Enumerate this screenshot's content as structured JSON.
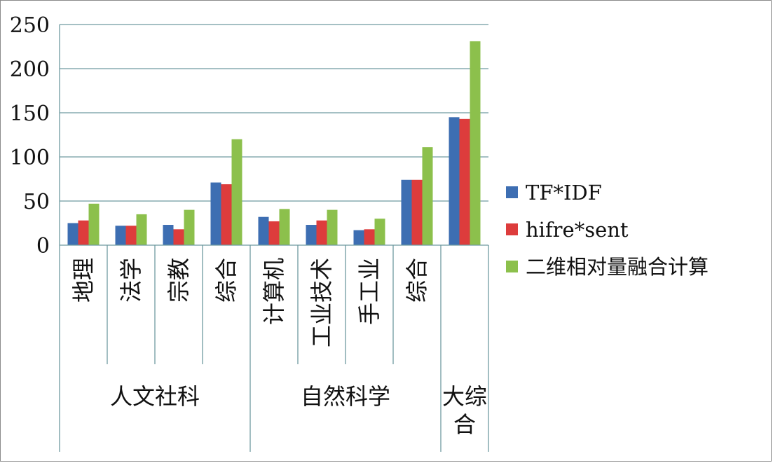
{
  "chart_data": {
    "type": "bar",
    "ylim": [
      0,
      250
    ],
    "yticks": [
      "0",
      "50",
      "100",
      "150",
      "200",
      "250"
    ],
    "grid": true,
    "legend_position": "right",
    "categories": [
      "地理",
      "法学",
      "宗教",
      "综合",
      "计算机",
      "工业技术",
      "手工业",
      "综合",
      ""
    ],
    "groups": [
      {
        "label": "人文社科",
        "span": [
          0,
          3
        ]
      },
      {
        "label": "自然科学",
        "span": [
          4,
          7
        ]
      },
      {
        "label": "大综合",
        "span": [
          8,
          8
        ]
      }
    ],
    "series": [
      {
        "name": "TF*IDF",
        "color": "#3d6eb2",
        "values": [
          25,
          22,
          23,
          71,
          32,
          23,
          17,
          74,
          145
        ]
      },
      {
        "name": "hifre*sent",
        "color": "#dd3c3c",
        "values": [
          28,
          22,
          18,
          69,
          27,
          28,
          18,
          74,
          143
        ]
      },
      {
        "name": "二维相对量融合计算",
        "color": "#8cc04c",
        "values": [
          47,
          35,
          40,
          120,
          41,
          40,
          30,
          111,
          231
        ]
      }
    ]
  }
}
